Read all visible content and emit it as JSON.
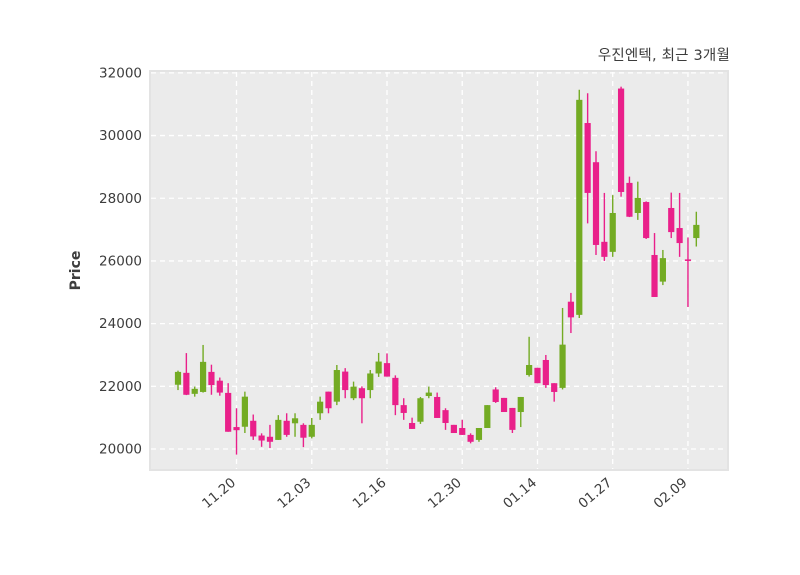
{
  "title": "우진엔텍, 최근 3개월",
  "y_axis": {
    "label": "Price",
    "tick_labels": [
      "20000",
      "22000",
      "24000",
      "26000",
      "28000",
      "30000",
      "32000"
    ],
    "tick_values": [
      20000,
      22000,
      24000,
      26000,
      28000,
      30000,
      32000
    ]
  },
  "x_axis": {
    "tick_labels": [
      "11.20",
      "12.03",
      "12.16",
      "12.30",
      "01.14",
      "01.27",
      "02.09"
    ]
  },
  "chart_data": {
    "type": "candlestick",
    "title": "우진엔텍, 최근 3개월",
    "ylabel": "Price",
    "ylim": [
      19330,
      32060
    ],
    "grid": "dashed-white",
    "legend": "none",
    "colors": {
      "up": "#73ab23",
      "down": "#e9208a",
      "plot_bg": "#ebebeb",
      "grid": "#ffffff",
      "text": "#3d3d3d"
    },
    "x_tick_labels": [
      "11.20",
      "12.03",
      "12.16",
      "12.30",
      "01.14",
      "01.27",
      "02.09"
    ],
    "x_tick_indices": [
      7,
      16,
      25,
      34,
      43,
      52,
      61
    ],
    "ohlc_order": [
      "open",
      "high",
      "low",
      "close"
    ],
    "candles": [
      [
        22050,
        22500,
        21880,
        22460
      ],
      [
        22430,
        23060,
        21720,
        21730
      ],
      [
        21760,
        21990,
        21670,
        21920
      ],
      [
        21820,
        23320,
        21800,
        22780
      ],
      [
        22460,
        22690,
        21730,
        22040
      ],
      [
        22180,
        22280,
        21700,
        21800
      ],
      [
        21790,
        22100,
        20550,
        20550
      ],
      [
        20700,
        21300,
        19820,
        20600
      ],
      [
        20710,
        21830,
        20510,
        21670
      ],
      [
        20900,
        21100,
        20290,
        20400
      ],
      [
        20430,
        20500,
        20070,
        20270
      ],
      [
        20390,
        20770,
        20030,
        20230
      ],
      [
        20290,
        21080,
        20290,
        20930
      ],
      [
        20900,
        21140,
        20390,
        20450
      ],
      [
        20820,
        21140,
        20390,
        20980
      ],
      [
        20770,
        20820,
        20060,
        20360
      ],
      [
        20390,
        20990,
        20340,
        20770
      ],
      [
        21140,
        21670,
        20930,
        21510
      ],
      [
        21830,
        21830,
        21140,
        21300
      ],
      [
        21510,
        22680,
        21400,
        22520
      ],
      [
        22470,
        22580,
        21620,
        21880
      ],
      [
        21620,
        22150,
        21560,
        21990
      ],
      [
        21940,
        22000,
        20820,
        21620
      ],
      [
        21880,
        22520,
        21620,
        22410
      ],
      [
        22410,
        23065,
        22300,
        22790
      ],
      [
        22740,
        23050,
        22310,
        22310
      ],
      [
        22270,
        22350,
        21080,
        21400
      ],
      [
        21400,
        21620,
        20930,
        21150
      ],
      [
        20830,
        21000,
        20640,
        20640
      ],
      [
        20870,
        21660,
        20800,
        21620
      ],
      [
        21690,
        21990,
        21620,
        21800
      ],
      [
        21660,
        21800,
        20990,
        20990
      ],
      [
        21240,
        21300,
        20610,
        20830
      ],
      [
        20770,
        20770,
        20510,
        20510
      ],
      [
        20670,
        20930,
        20450,
        20450
      ],
      [
        20450,
        20500,
        20180,
        20230
      ],
      [
        20290,
        20670,
        20230,
        20670
      ],
      [
        20670,
        21400,
        20670,
        21400
      ],
      [
        21900,
        21970,
        21470,
        21500
      ],
      [
        21630,
        21630,
        21180,
        21180
      ],
      [
        21310,
        21310,
        20510,
        20610
      ],
      [
        21180,
        21660,
        20700,
        21660
      ],
      [
        22360,
        23580,
        22310,
        22680
      ],
      [
        22590,
        22590,
        22100,
        22100
      ],
      [
        22840,
        23000,
        21950,
        22040
      ],
      [
        22100,
        22100,
        21510,
        21820
      ],
      [
        21950,
        24500,
        21900,
        23330
      ],
      [
        24700,
        24980,
        23700,
        24200
      ],
      [
        24280,
        31460,
        24180,
        31140
      ],
      [
        30400,
        31350,
        27200,
        28170
      ],
      [
        29150,
        29500,
        26190,
        26510
      ],
      [
        26610,
        28170,
        26000,
        26130
      ],
      [
        26290,
        28100,
        26130,
        27530
      ],
      [
        31500,
        31560,
        28050,
        28200
      ],
      [
        28490,
        28690,
        27400,
        27410
      ],
      [
        27530,
        28530,
        27310,
        28010
      ],
      [
        27880,
        27900,
        26700,
        26730
      ],
      [
        26190,
        26890,
        24850,
        24850
      ],
      [
        25340,
        26350,
        25230,
        26090
      ],
      [
        27690,
        28180,
        26730,
        26920
      ],
      [
        27050,
        28170,
        26130,
        26570
      ],
      [
        26050,
        26750,
        24530,
        26000
      ],
      [
        26730,
        27570,
        26460,
        27150
      ]
    ]
  }
}
